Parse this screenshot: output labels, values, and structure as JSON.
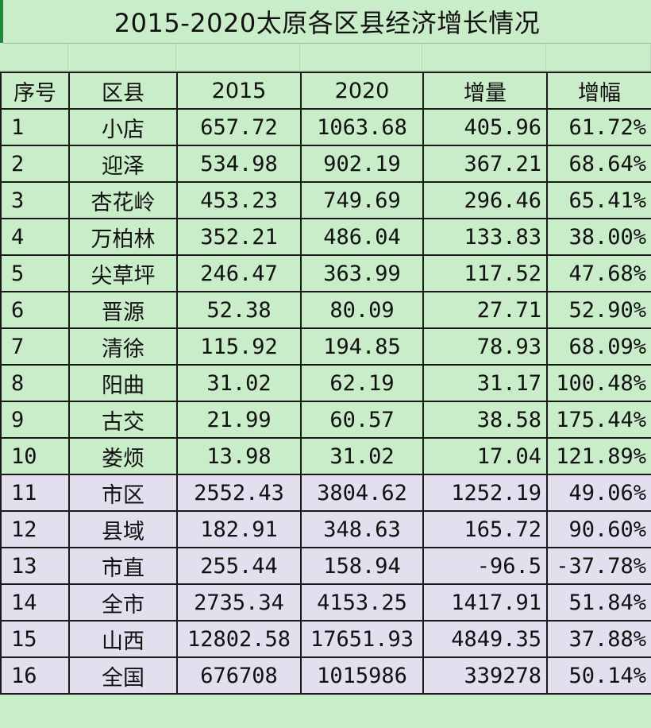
{
  "title": "2015-2020太原各区县经济增长情况",
  "headers": [
    "序号",
    "区县",
    "2015",
    "2020",
    "增量",
    "增幅"
  ],
  "rows": [
    [
      "1",
      "小店",
      "657.72",
      "1063.68",
      "405.96",
      "61.72%"
    ],
    [
      "2",
      "迎泽",
      "534.98",
      "902.19",
      "367.21",
      "68.64%"
    ],
    [
      "3",
      "杏花岭",
      "453.23",
      "749.69",
      "296.46",
      "65.41%"
    ],
    [
      "4",
      "万柏林",
      "352.21",
      "486.04",
      "133.83",
      "38.00%"
    ],
    [
      "5",
      "尖草坪",
      "246.47",
      "363.99",
      "117.52",
      "47.68%"
    ],
    [
      "6",
      "晋源",
      "52.38",
      "80.09",
      "27.71",
      "52.90%"
    ],
    [
      "7",
      "清徐",
      "115.92",
      "194.85",
      "78.93",
      "68.09%"
    ],
    [
      "8",
      "阳曲",
      "31.02",
      "62.19",
      "31.17",
      "100.48%"
    ],
    [
      "9",
      "古交",
      "21.99",
      "60.57",
      "38.58",
      "175.44%"
    ],
    [
      "10",
      "娄烦",
      "13.98",
      "31.02",
      "17.04",
      "121.89%"
    ],
    [
      "11",
      "市区",
      "2552.43",
      "3804.62",
      "1252.19",
      "49.06%"
    ],
    [
      "12",
      "县域",
      "182.91",
      "348.63",
      "165.72",
      "90.60%"
    ],
    [
      "13",
      "市直",
      "255.44",
      "158.94",
      "-96.5",
      "-37.78%"
    ],
    [
      "14",
      "全市",
      "2735.34",
      "4153.25",
      "1417.91",
      "51.84%"
    ],
    [
      "15",
      "山西",
      "12802.58",
      "17651.93",
      "4849.35",
      "37.88%"
    ],
    [
      "16",
      "全国",
      "676708",
      "1015986",
      "339278",
      "50.14%"
    ]
  ],
  "colors": {
    "green": "#c9ecc9",
    "lavender": "#e3dfef"
  }
}
